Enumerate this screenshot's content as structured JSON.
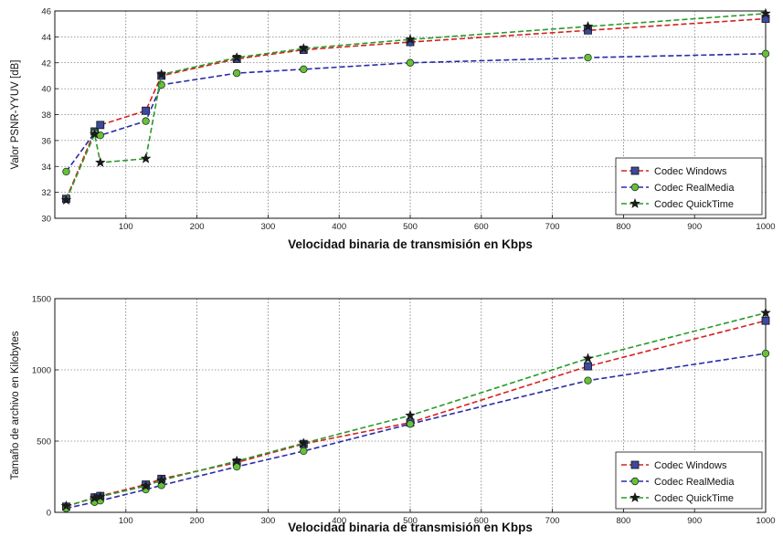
{
  "chart_data": [
    {
      "type": "line",
      "xlabel": "Velocidad binaria de transmisión en Kbps",
      "ylabel": "Valor PSNR-YYUV [dB]",
      "xlim": [
        0,
        1000
      ],
      "ylim": [
        30,
        46
      ],
      "xticks": [
        100,
        200,
        300,
        400,
        500,
        600,
        700,
        800,
        900,
        1000
      ],
      "yticks": [
        30,
        32,
        34,
        36,
        38,
        40,
        42,
        44,
        46
      ],
      "grid": true,
      "legend_position": "bottom-right",
      "series": [
        {
          "name": "Codec Windows",
          "color": "#d62020",
          "marker": "square",
          "x": [
            16,
            56,
            64,
            128,
            150,
            256,
            350,
            500,
            750,
            1000
          ],
          "y": [
            31.5,
            36.7,
            37.2,
            38.3,
            41.0,
            42.3,
            43.0,
            43.6,
            44.5,
            45.4
          ]
        },
        {
          "name": "Codec RealMedia",
          "color": "#2a2aa8",
          "marker": "circle",
          "x": [
            16,
            56,
            64,
            128,
            150,
            256,
            350,
            500,
            750,
            1000
          ],
          "y": [
            33.6,
            36.6,
            36.4,
            37.5,
            40.3,
            41.2,
            41.5,
            42.0,
            42.4,
            42.7
          ]
        },
        {
          "name": "Codec QuickTime",
          "color": "#2a9a2a",
          "marker": "star",
          "x": [
            16,
            56,
            64,
            128,
            150,
            256,
            350,
            500,
            750,
            1000
          ],
          "y": [
            31.4,
            36.5,
            34.3,
            34.6,
            41.1,
            42.4,
            43.1,
            43.8,
            44.8,
            45.8
          ]
        }
      ]
    },
    {
      "type": "line",
      "xlabel": "Velocidad binaria de transmisión en Kbps",
      "ylabel": "Tamaño de archivo en Kilobytes",
      "xlim": [
        0,
        1000
      ],
      "ylim": [
        0,
        1500
      ],
      "xticks": [
        100,
        200,
        300,
        400,
        500,
        600,
        700,
        800,
        900,
        1000
      ],
      "yticks": [
        0,
        500,
        1000,
        1500
      ],
      "grid": true,
      "legend_position": "bottom-right",
      "series": [
        {
          "name": "Codec Windows",
          "color": "#d62020",
          "marker": "square",
          "x": [
            16,
            56,
            64,
            128,
            150,
            256,
            350,
            500,
            750,
            1000
          ],
          "y": [
            40,
            105,
            115,
            195,
            235,
            350,
            480,
            630,
            1025,
            1345
          ]
        },
        {
          "name": "Codec RealMedia",
          "color": "#2a2aa8",
          "marker": "circle",
          "x": [
            16,
            56,
            64,
            128,
            150,
            256,
            350,
            500,
            750,
            1000
          ],
          "y": [
            28,
            72,
            82,
            160,
            190,
            320,
            430,
            620,
            925,
            1115
          ]
        },
        {
          "name": "Codec QuickTime",
          "color": "#2a9a2a",
          "marker": "star",
          "x": [
            16,
            56,
            64,
            128,
            150,
            256,
            350,
            500,
            750,
            1000
          ],
          "y": [
            45,
            100,
            110,
            185,
            225,
            360,
            485,
            680,
            1080,
            1400
          ]
        }
      ]
    }
  ]
}
